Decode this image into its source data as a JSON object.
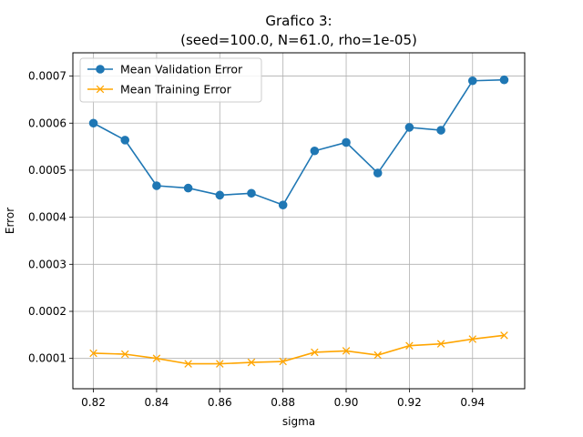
{
  "chart_data": {
    "type": "line",
    "title": "Grafico 3:\n(seed=100.0, N=61.0, rho=1e-05)",
    "title_lines": [
      "Grafico 3:",
      "(seed=100.0, N=61.0, rho=1e-05)"
    ],
    "xlabel": "sigma",
    "ylabel": "Error",
    "x": [
      0.82,
      0.83,
      0.84,
      0.85,
      0.86,
      0.87,
      0.88,
      0.89,
      0.9,
      0.91,
      0.92,
      0.93,
      0.94,
      0.95
    ],
    "xlim": [
      0.8135,
      0.9565
    ],
    "ylim": [
      3.55e-05,
      0.0007495
    ],
    "x_ticks": [
      0.82,
      0.84,
      0.86,
      0.88,
      0.9,
      0.92,
      0.94
    ],
    "x_tick_labels": [
      "0.82",
      "0.84",
      "0.86",
      "0.88",
      "0.90",
      "0.92",
      "0.94"
    ],
    "y_ticks": [
      0.0001,
      0.0002,
      0.0003,
      0.0004,
      0.0005,
      0.0006,
      0.0007
    ],
    "y_tick_labels": [
      "0.0001",
      "0.0002",
      "0.0003",
      "0.0004",
      "0.0005",
      "0.0006",
      "0.0007"
    ],
    "grid": true,
    "legend_position": "upper-left",
    "series": [
      {
        "name": "Mean Validation Error",
        "color": "#1f77b4",
        "marker": "circle",
        "values": [
          0.0006,
          0.000564,
          0.000467,
          0.000462,
          0.000447,
          0.000451,
          0.000426,
          0.000541,
          0.000559,
          0.000494,
          0.000591,
          0.000585,
          0.00069,
          0.000692
        ]
      },
      {
        "name": "Mean Training Error",
        "color": "#ffa500",
        "marker": "x",
        "values": [
          0.000111,
          0.000109,
          0.0001,
          8.85e-05,
          8.85e-05,
          9.15e-05,
          9.35e-05,
          0.000113,
          0.000116,
          0.000107,
          0.000127,
          0.000131,
          0.000141,
          0.000149
        ]
      }
    ]
  }
}
